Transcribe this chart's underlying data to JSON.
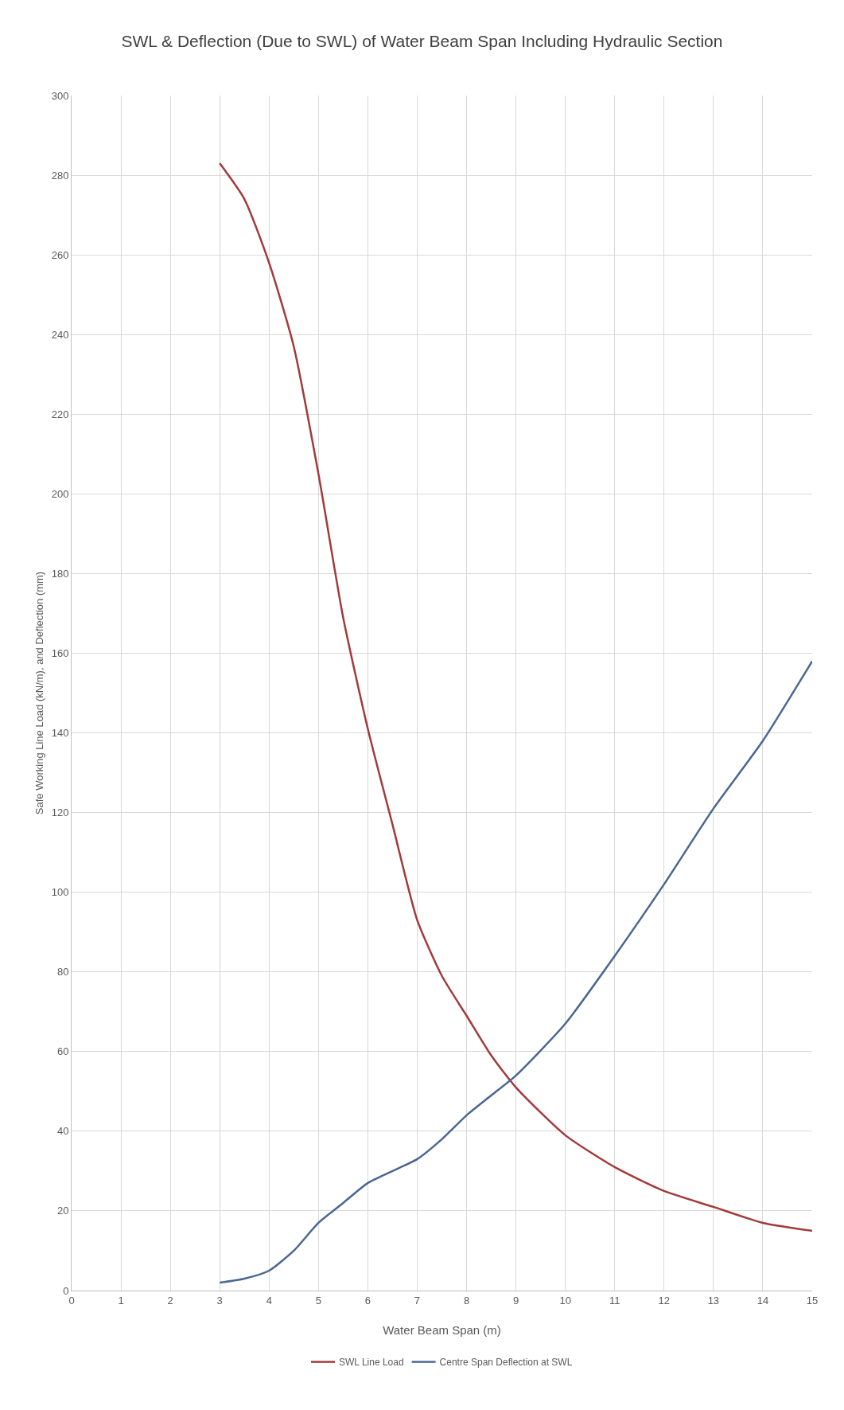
{
  "chart_data": {
    "type": "line",
    "title": "SWL & Deflection (Due to SWL) of Water Beam Span Including Hydraulic Section",
    "xlabel": "Water Beam Span (m)",
    "ylabel": "Safe Working Line Load (kN/m), and Deflection (mm)",
    "x": [
      3,
      3.5,
      4,
      4.5,
      5,
      5.5,
      6,
      6.5,
      7,
      7.5,
      8,
      8.5,
      9,
      10,
      11,
      12,
      13,
      14,
      15
    ],
    "series": [
      {
        "name": "SWL Line Load",
        "color": "#a33a3a",
        "values": [
          283,
          274,
          258,
          237,
          205,
          169,
          141,
          117,
          93,
          79,
          69,
          59,
          51,
          39,
          31,
          25,
          21,
          17,
          15
        ]
      },
      {
        "name": "Centre Span Deflection at SWL",
        "color": "#4a6791",
        "values": [
          2,
          3,
          5,
          10,
          17,
          22,
          27,
          30,
          33,
          38,
          44,
          49,
          54,
          67,
          84,
          102,
          121,
          138,
          158
        ]
      }
    ],
    "xlim": [
      0,
      15
    ],
    "xticks": [
      0,
      1,
      2,
      3,
      4,
      5,
      6,
      7,
      8,
      9,
      10,
      11,
      12,
      13,
      14,
      15
    ],
    "ylim": [
      0,
      300
    ],
    "yticks": [
      0,
      20,
      40,
      60,
      80,
      100,
      120,
      140,
      160,
      180,
      200,
      220,
      240,
      260,
      280,
      300
    ],
    "grid": true,
    "legend": "bottom",
    "marker": "none",
    "line_style": "solid"
  }
}
